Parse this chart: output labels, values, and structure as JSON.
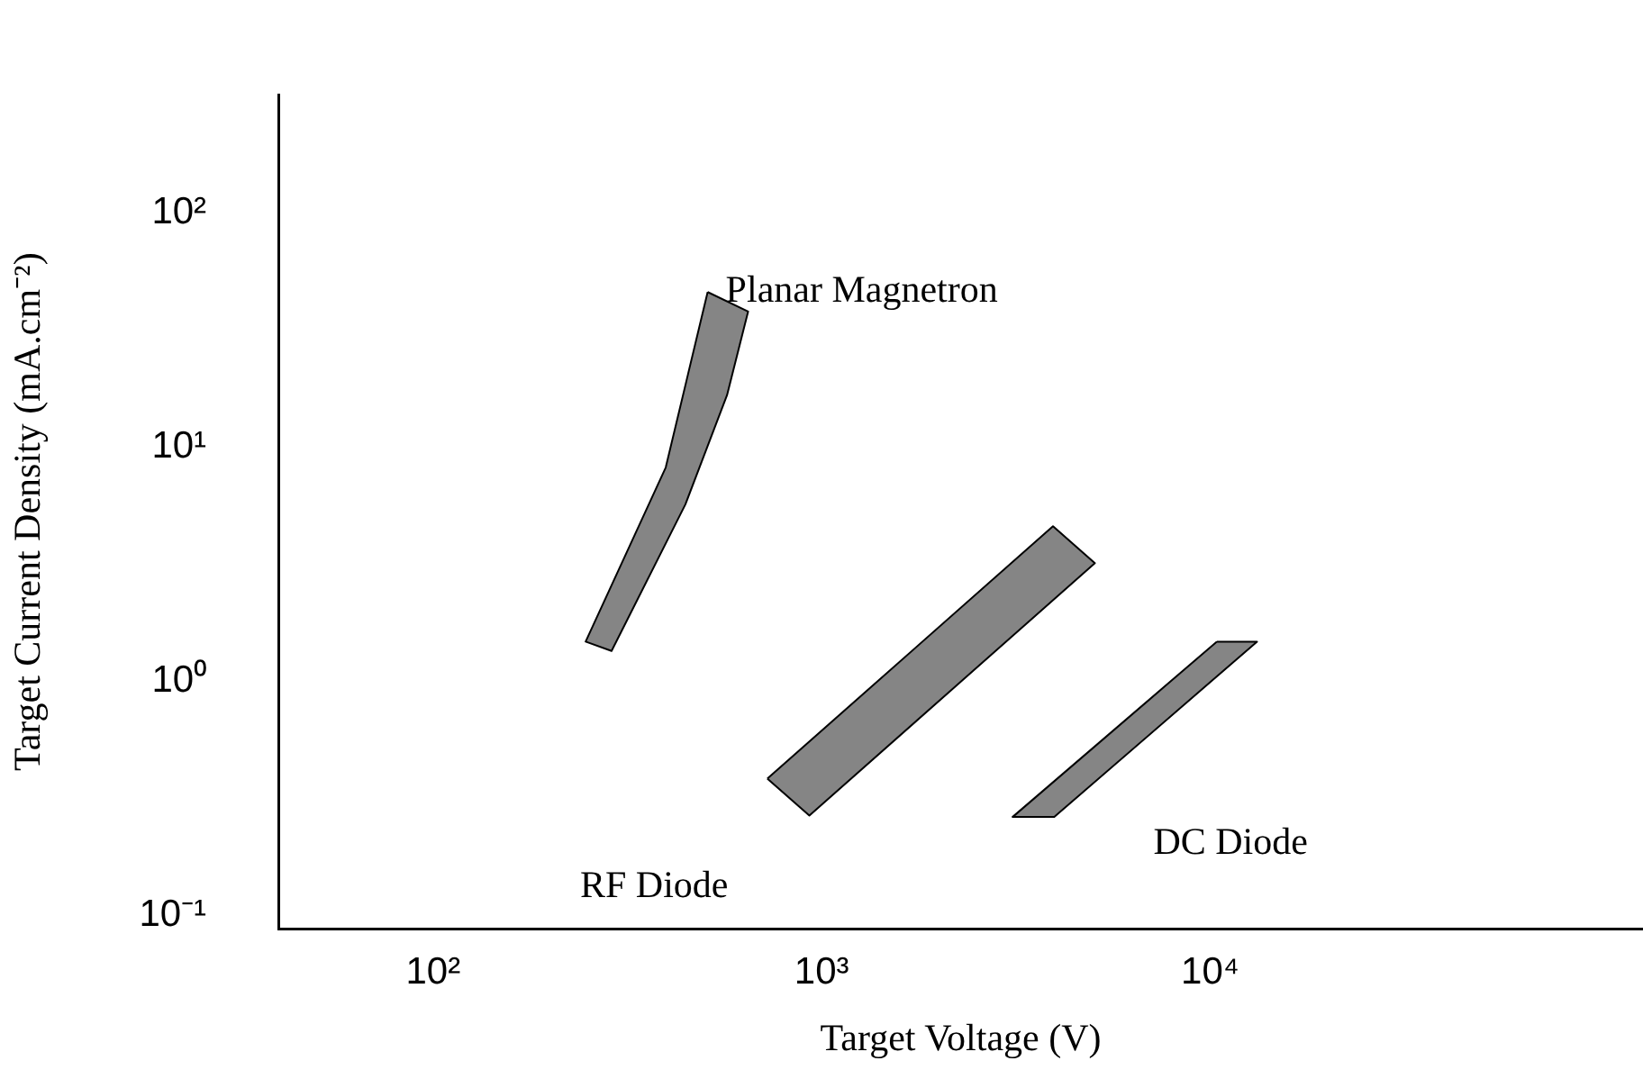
{
  "chart_data": {
    "type": "area",
    "xlabel": "Target Voltage (V)",
    "ylabel": "Target Current Density (mA.cm⁻²)",
    "log": "xy",
    "grid": false,
    "legend": false,
    "marker": "none",
    "xlim": [
      40,
      130000
    ],
    "ylim": [
      0.088,
      320
    ],
    "xticks": [
      {
        "value": 100,
        "label": "10²"
      },
      {
        "value": 1000,
        "label": "10³"
      },
      {
        "value": 10000,
        "label": "10⁴"
      }
    ],
    "yticks": [
      {
        "value": 0.1,
        "label": "10⁻¹"
      },
      {
        "value": 1,
        "label": "10⁰"
      },
      {
        "value": 10,
        "label": "10¹"
      },
      {
        "value": 100,
        "label": "10²"
      }
    ],
    "series": [
      {
        "name": "Planar Magnetron",
        "color": "#858585",
        "x": [
          509,
          647,
          571,
          446,
          288,
          247,
          397,
          509
        ],
        "values": [
          46,
          38,
          16.7,
          5.7,
          1.35,
          1.48,
          8.2,
          46
        ]
      },
      {
        "name": "RF Diode",
        "color": "#858585",
        "x": [
          725,
          3940,
          5050,
          930,
          725
        ],
        "values": [
          0.385,
          4.6,
          3.2,
          0.268,
          0.385
        ]
      },
      {
        "name": "DC Diode",
        "color": "#858585",
        "x": [
          10400,
          13200,
          3970,
          3100,
          10400
        ],
        "values": [
          1.48,
          1.48,
          0.264,
          0.264,
          1.48
        ]
      }
    ]
  }
}
